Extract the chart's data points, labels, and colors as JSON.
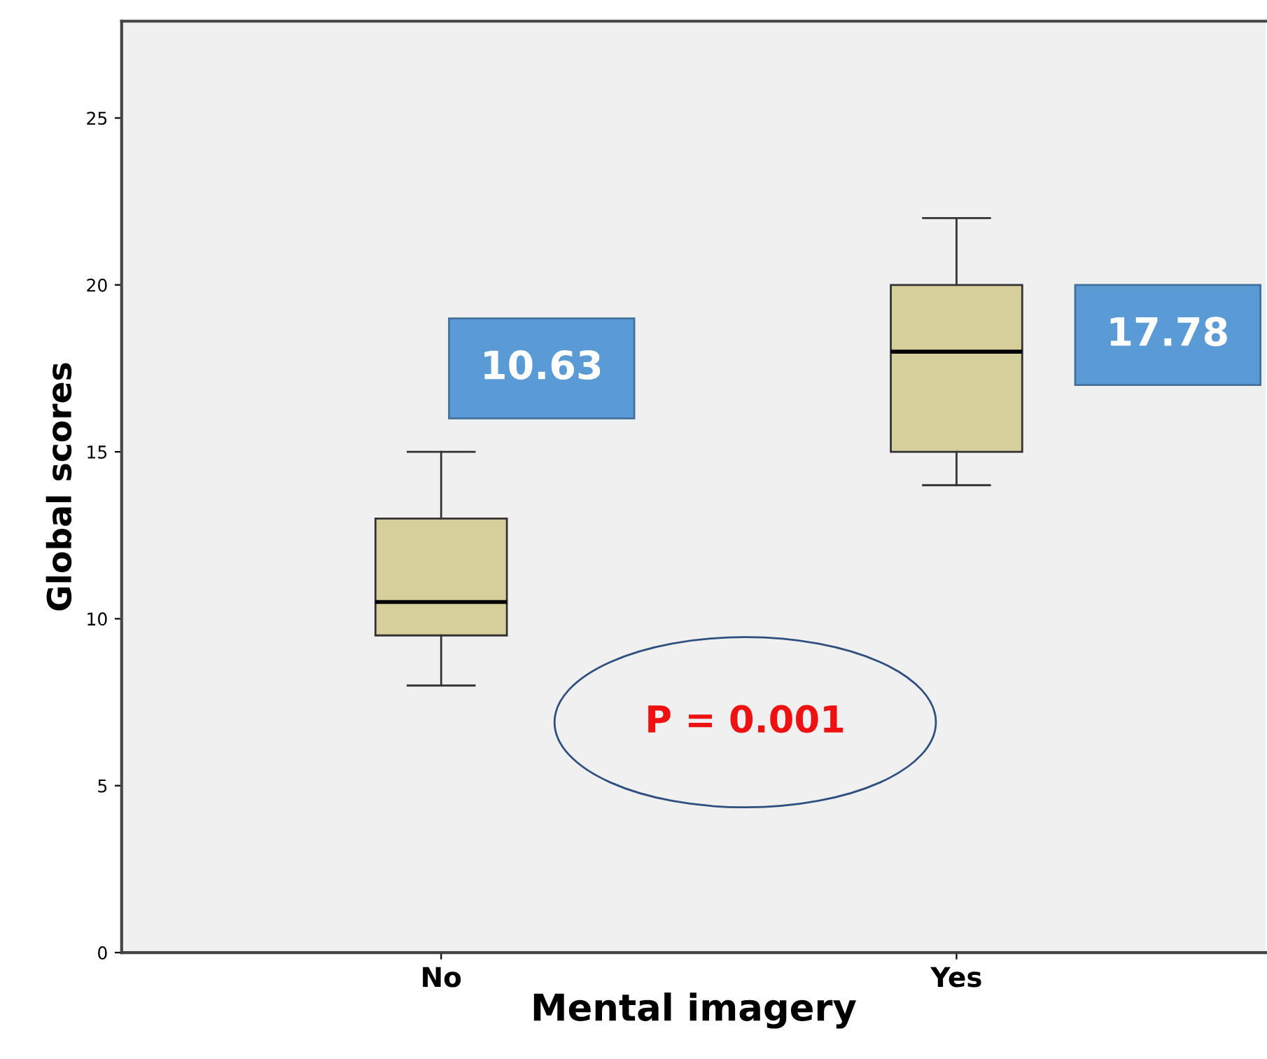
{
  "chart_data": {
    "type": "box",
    "xlabel": "Mental imagery",
    "ylabel": "Global scores",
    "categories": [
      "No",
      "Yes"
    ],
    "boxes": [
      {
        "low": 8,
        "q1": 9.5,
        "median": 10.5,
        "q3": 13,
        "high": 15
      },
      {
        "low": 14,
        "q1": 15,
        "median": 18,
        "q3": 20,
        "high": 22
      }
    ],
    "color": "#d6cf9c",
    "ylim": [
      0,
      27.9
    ],
    "yticks": [
      0,
      5,
      10,
      15,
      20,
      25
    ],
    "grid": false,
    "legend": false,
    "annotations": [
      "10.63",
      "17.78",
      "P = 0.001"
    ]
  }
}
